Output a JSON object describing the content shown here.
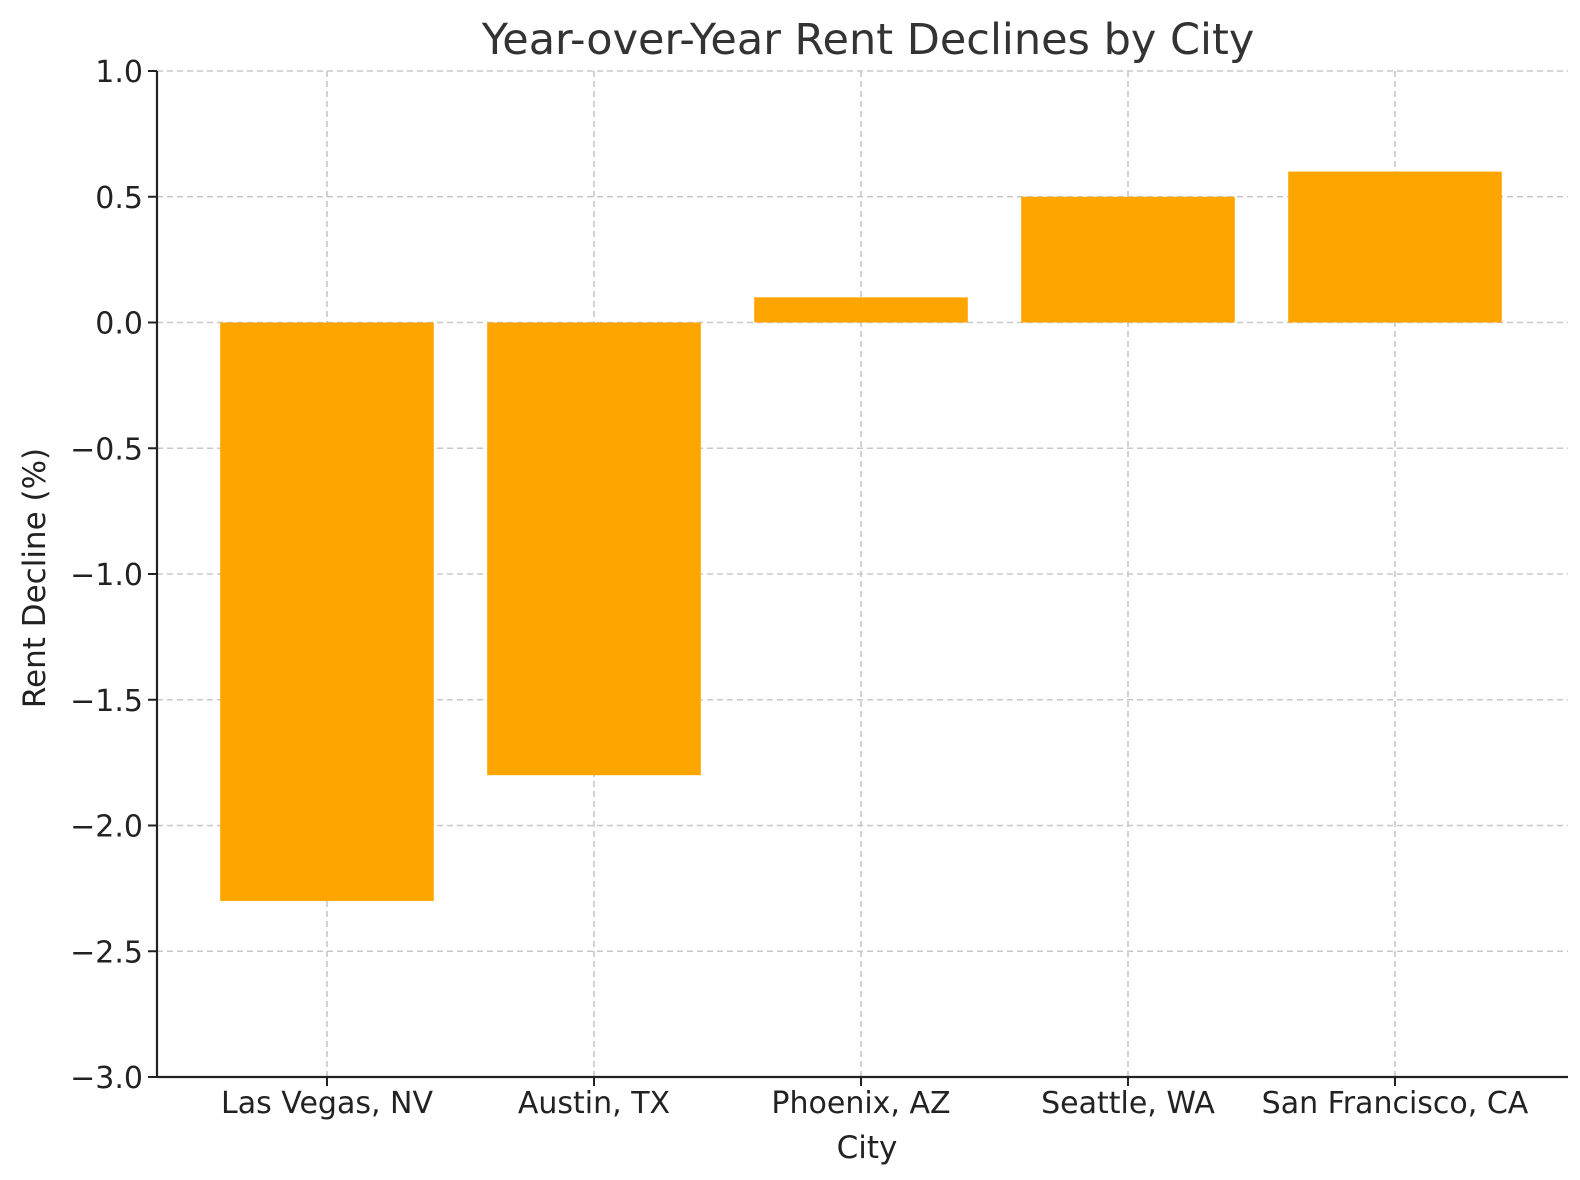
{
  "chart_data": {
    "type": "bar",
    "title": "Year-over-Year Rent Declines by City",
    "xlabel": "City",
    "ylabel": "Rent Decline (%)",
    "categories": [
      "Las Vegas, NV",
      "Austin, TX",
      "Phoenix, AZ",
      "Seattle, WA",
      "San Francisco, CA"
    ],
    "values": [
      -2.3,
      -1.8,
      0.1,
      0.5,
      0.6
    ],
    "ylim": [
      -3.0,
      1.0
    ],
    "yticks": [
      1.0,
      0.5,
      0.0,
      -0.5,
      -1.0,
      -1.5,
      -2.0,
      -2.5,
      -3.0
    ],
    "ytick_labels": [
      "1.0",
      "0.5",
      "0.0",
      "−0.5",
      "−1.0",
      "−1.5",
      "−2.0",
      "−2.5",
      "−3.0"
    ],
    "bar_color": "#FFA500",
    "grid": true,
    "legend": "none"
  }
}
